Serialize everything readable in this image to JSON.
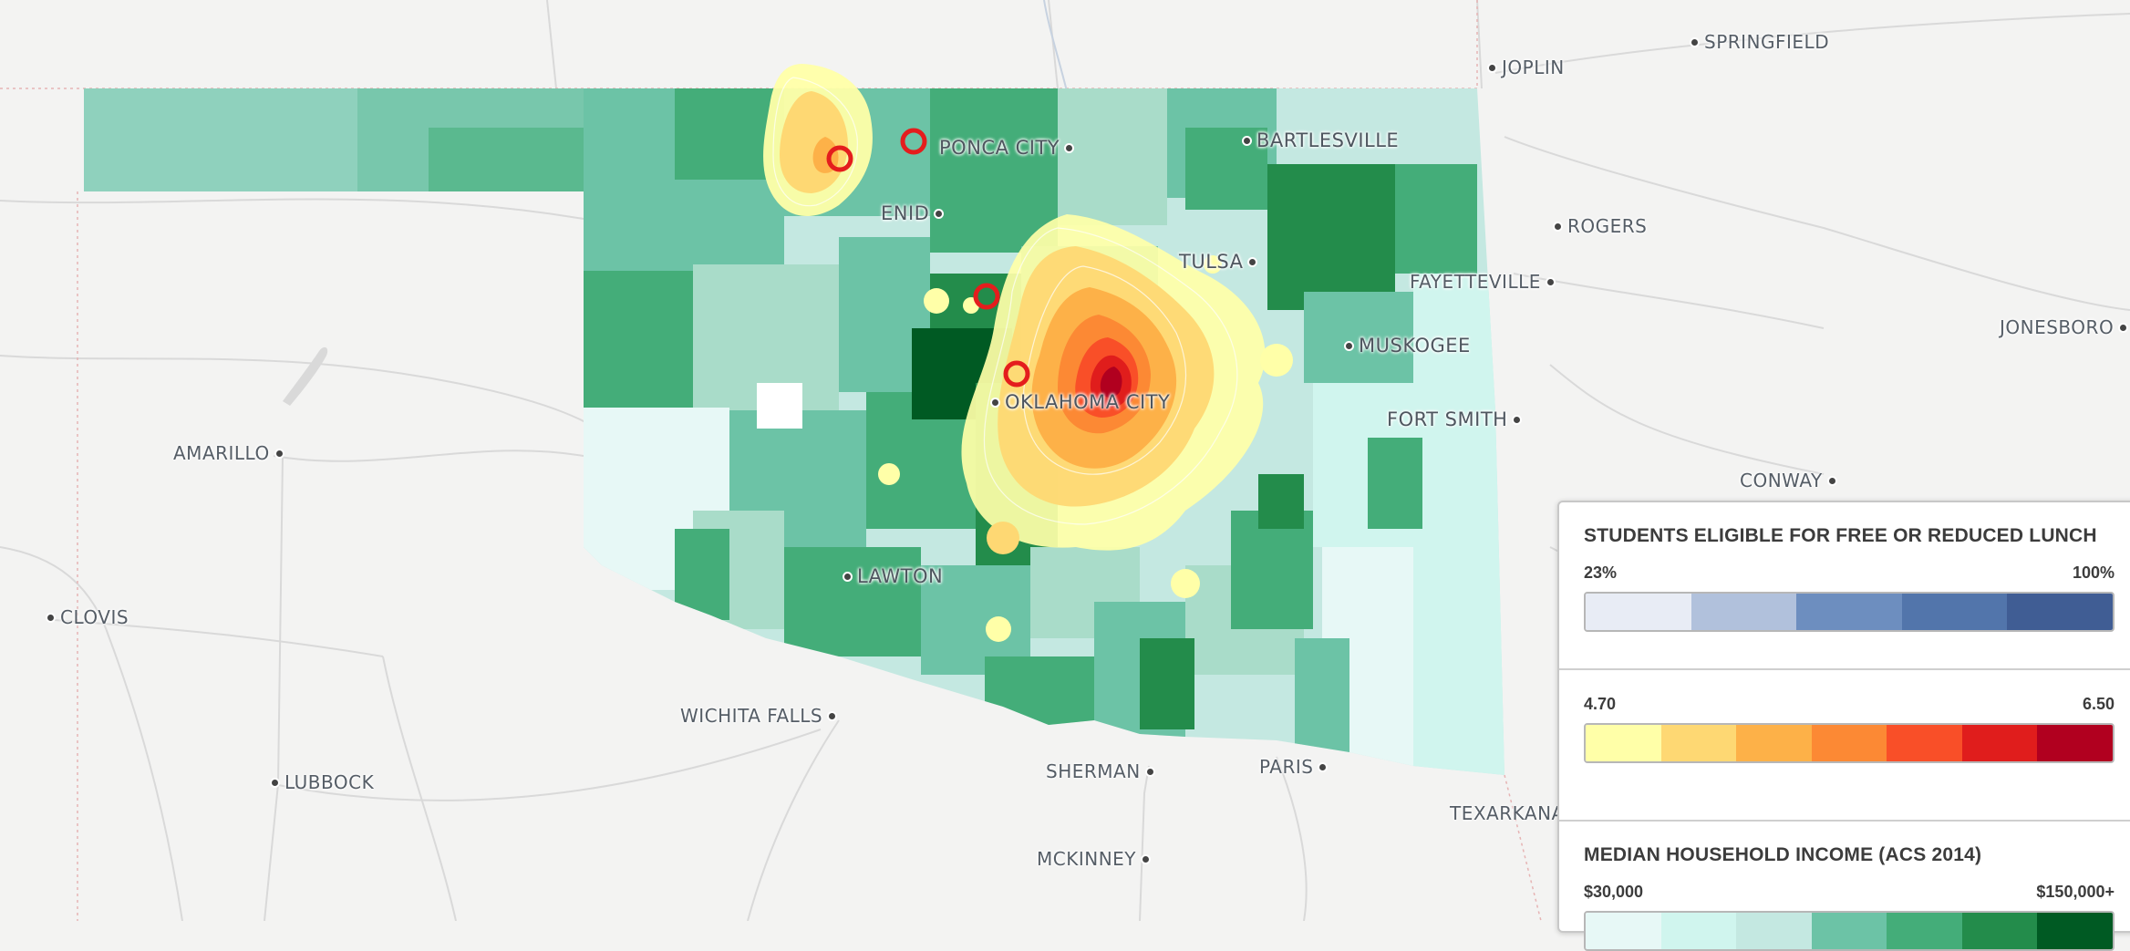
{
  "cities": [
    {
      "name": "JOPLIN"
    },
    {
      "name": "SPRINGFIELD"
    },
    {
      "name": "PONCA CITY"
    },
    {
      "name": "BARTLESVILLE"
    },
    {
      "name": "ENID"
    },
    {
      "name": "ROGERS"
    },
    {
      "name": "TULSA"
    },
    {
      "name": "FAYETTEVILLE"
    },
    {
      "name": "JONESBORO"
    },
    {
      "name": "MUSKOGEE"
    },
    {
      "name": "OKLAHOMA CITY"
    },
    {
      "name": "AMARILLO"
    },
    {
      "name": "FORT SMITH"
    },
    {
      "name": "CONWAY"
    },
    {
      "name": "LAWTON"
    },
    {
      "name": "CLOVIS"
    },
    {
      "name": "WICHITA FALLS"
    },
    {
      "name": "PARIS"
    },
    {
      "name": "SHERMAN"
    },
    {
      "name": "LUBBOCK"
    },
    {
      "name": "TEXARKANA"
    },
    {
      "name": "MCKINNEY"
    }
  ],
  "legend": {
    "lunch": {
      "title": "STUDENTS ELIGIBLE FOR FREE OR REDUCED LUNCH",
      "min": "23%",
      "max": "100%",
      "colors": [
        "#e8ecf5",
        "#b1c1dc",
        "#6d8ebf",
        "#5275ab",
        "#405d94"
      ]
    },
    "score": {
      "min": "4.70",
      "max": "6.50",
      "colors": [
        "#ffffa8",
        "#fed873",
        "#fdb148",
        "#fc8934",
        "#f94f28",
        "#e01d1c",
        "#b1001f"
      ]
    },
    "income": {
      "title": "MEDIAN HOUSEHOLD INCOME (ACS 2014)",
      "min": "$30,000",
      "max": "$150,000+",
      "colors": [
        "#e7f8f6",
        "#d0f5ee",
        "#c4e8e1",
        "#6cc3a6",
        "#44ad79",
        "#238c4b",
        "#005a23"
      ]
    }
  }
}
